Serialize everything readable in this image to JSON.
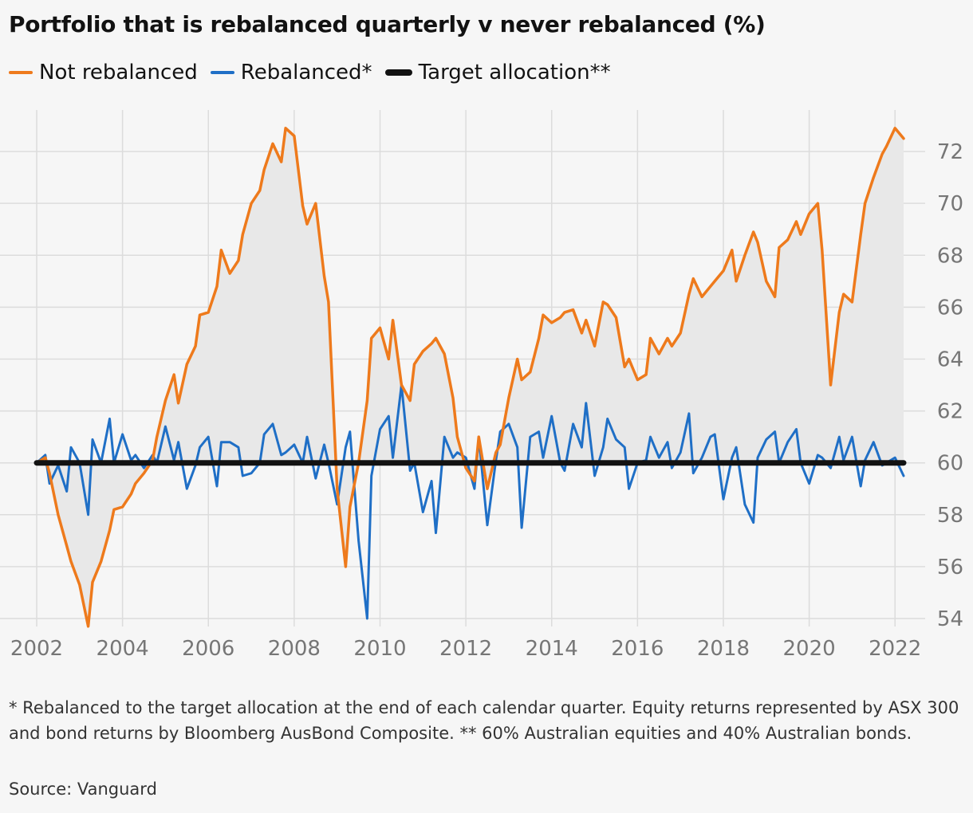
{
  "title": "Portfolio that is rebalanced quarterly v never rebalanced (%)",
  "footnote": "* Rebalanced to the target allocation at the end of each calendar quarter. Equity returns represented by ASX 300 and bond returns by Bloomberg AusBond Composite. ** 60% Australian equities and 40% Australian bonds.",
  "source": "Source: Vanguard",
  "colors": {
    "not_rebalanced": "#ee7a1c",
    "rebalanced": "#1f6fc6",
    "target": "#121212",
    "fill": "#e8e8e8",
    "grid": "#dcdcdc",
    "tick_text": "#767676"
  },
  "chart_data": {
    "type": "line",
    "title": "Portfolio that is rebalanced quarterly v never rebalanced (%)",
    "xlabel": "",
    "ylabel": "",
    "xlim": [
      2002,
      2022.2
    ],
    "ylim": [
      54,
      73.6
    ],
    "x_ticks": [
      2002,
      2004,
      2006,
      2008,
      2010,
      2012,
      2014,
      2016,
      2018,
      2020,
      2022
    ],
    "y_ticks": [
      54,
      56,
      58,
      60,
      62,
      64,
      66,
      68,
      70,
      72
    ],
    "grid": true,
    "legend_position": "top-left",
    "shaded_between": [
      "Not rebalanced",
      "Target allocation**"
    ],
    "series": [
      {
        "name": "Not rebalanced",
        "x": [
          2002.0,
          2002.2,
          2002.3,
          2002.5,
          2002.7,
          2002.8,
          2003.0,
          2003.2,
          2003.3,
          2003.5,
          2003.7,
          2003.8,
          2004.0,
          2004.2,
          2004.3,
          2004.5,
          2004.7,
          2004.8,
          2005.0,
          2005.2,
          2005.3,
          2005.5,
          2005.7,
          2005.8,
          2006.0,
          2006.2,
          2006.3,
          2006.5,
          2006.7,
          2006.8,
          2007.0,
          2007.2,
          2007.3,
          2007.5,
          2007.7,
          2007.8,
          2008.0,
          2008.2,
          2008.3,
          2008.5,
          2008.7,
          2008.8,
          2009.0,
          2009.2,
          2009.3,
          2009.5,
          2009.7,
          2009.8,
          2010.0,
          2010.2,
          2010.3,
          2010.5,
          2010.7,
          2010.8,
          2011.0,
          2011.2,
          2011.3,
          2011.5,
          2011.7,
          2011.8,
          2012.0,
          2012.2,
          2012.3,
          2012.5,
          2012.7,
          2012.8,
          2013.0,
          2013.2,
          2013.3,
          2013.5,
          2013.7,
          2013.8,
          2014.0,
          2014.2,
          2014.3,
          2014.5,
          2014.7,
          2014.8,
          2015.0,
          2015.2,
          2015.3,
          2015.5,
          2015.7,
          2015.8,
          2016.0,
          2016.2,
          2016.3,
          2016.5,
          2016.7,
          2016.8,
          2017.0,
          2017.2,
          2017.3,
          2017.5,
          2017.7,
          2017.8,
          2018.0,
          2018.2,
          2018.3,
          2018.5,
          2018.7,
          2018.8,
          2019.0,
          2019.2,
          2019.3,
          2019.5,
          2019.7,
          2019.8,
          2020.0,
          2020.2,
          2020.3,
          2020.5,
          2020.7,
          2020.8,
          2021.0,
          2021.2,
          2021.3,
          2021.5,
          2021.7,
          2021.8,
          2022.0,
          2022.2
        ],
        "values": [
          60.0,
          60.2,
          59.6,
          58.0,
          56.8,
          56.2,
          55.3,
          53.7,
          55.4,
          56.2,
          57.4,
          58.2,
          58.3,
          58.8,
          59.2,
          59.6,
          60.1,
          61.0,
          62.4,
          63.4,
          62.3,
          63.8,
          64.5,
          65.7,
          65.8,
          66.8,
          68.2,
          67.3,
          67.8,
          68.8,
          70.0,
          70.5,
          71.3,
          72.3,
          71.6,
          72.9,
          72.6,
          69.9,
          69.2,
          70.0,
          67.2,
          66.2,
          59.0,
          56.0,
          58.3,
          60.0,
          62.4,
          64.8,
          65.2,
          64.0,
          65.5,
          63.0,
          62.4,
          63.8,
          64.3,
          64.6,
          64.8,
          64.2,
          62.5,
          61.0,
          59.8,
          59.3,
          61.0,
          59.0,
          60.4,
          60.7,
          62.5,
          64.0,
          63.2,
          63.5,
          64.8,
          65.7,
          65.4,
          65.6,
          65.8,
          65.9,
          65.0,
          65.5,
          64.5,
          66.2,
          66.1,
          65.6,
          63.7,
          64.0,
          63.2,
          63.4,
          64.8,
          64.2,
          64.8,
          64.5,
          65.0,
          66.5,
          67.1,
          66.4,
          66.8,
          67.0,
          67.4,
          68.2,
          67.0,
          68.0,
          68.9,
          68.5,
          67.0,
          66.4,
          68.3,
          68.6,
          69.3,
          68.8,
          69.6,
          70.0,
          68.2,
          63.0,
          65.8,
          66.5,
          66.2,
          68.8,
          70.0,
          71.0,
          71.9,
          72.2,
          72.9,
          72.5
        ]
      },
      {
        "name": "Rebalanced*",
        "x": [
          2002.0,
          2002.2,
          2002.3,
          2002.5,
          2002.7,
          2002.8,
          2003.0,
          2003.2,
          2003.3,
          2003.5,
          2003.7,
          2003.8,
          2004.0,
          2004.2,
          2004.3,
          2004.5,
          2004.7,
          2004.8,
          2005.0,
          2005.2,
          2005.3,
          2005.5,
          2005.7,
          2005.8,
          2006.0,
          2006.2,
          2006.3,
          2006.5,
          2006.7,
          2006.8,
          2007.0,
          2007.2,
          2007.3,
          2007.5,
          2007.7,
          2007.8,
          2008.0,
          2008.2,
          2008.3,
          2008.5,
          2008.7,
          2008.8,
          2009.0,
          2009.2,
          2009.3,
          2009.5,
          2009.7,
          2009.8,
          2010.0,
          2010.2,
          2010.3,
          2010.5,
          2010.7,
          2010.8,
          2011.0,
          2011.2,
          2011.3,
          2011.5,
          2011.7,
          2011.8,
          2012.0,
          2012.2,
          2012.3,
          2012.5,
          2012.7,
          2012.8,
          2013.0,
          2013.2,
          2013.3,
          2013.5,
          2013.7,
          2013.8,
          2014.0,
          2014.2,
          2014.3,
          2014.5,
          2014.7,
          2014.8,
          2015.0,
          2015.2,
          2015.3,
          2015.5,
          2015.7,
          2015.8,
          2016.0,
          2016.2,
          2016.3,
          2016.5,
          2016.7,
          2016.8,
          2017.0,
          2017.2,
          2017.3,
          2017.5,
          2017.7,
          2017.8,
          2018.0,
          2018.2,
          2018.3,
          2018.5,
          2018.7,
          2018.8,
          2019.0,
          2019.2,
          2019.3,
          2019.5,
          2019.7,
          2019.8,
          2020.0,
          2020.2,
          2020.3,
          2020.5,
          2020.7,
          2020.8,
          2021.0,
          2021.2,
          2021.3,
          2021.5,
          2021.7,
          2021.8,
          2022.0,
          2022.2
        ],
        "values": [
          60.0,
          60.3,
          59.2,
          59.9,
          58.9,
          60.6,
          60.0,
          58.0,
          60.9,
          60.0,
          61.7,
          60.0,
          61.1,
          60.1,
          60.3,
          59.8,
          60.3,
          60.0,
          61.4,
          60.1,
          60.8,
          59.0,
          59.9,
          60.6,
          61.0,
          59.1,
          60.8,
          60.8,
          60.6,
          59.5,
          59.6,
          60.0,
          61.1,
          61.5,
          60.3,
          60.4,
          60.7,
          60.0,
          61.0,
          59.4,
          60.7,
          60.0,
          58.4,
          60.6,
          61.2,
          57.0,
          54.0,
          59.5,
          61.3,
          61.8,
          60.2,
          63.0,
          59.7,
          60.0,
          58.1,
          59.3,
          57.3,
          61.0,
          60.2,
          60.4,
          60.2,
          59.0,
          61.0,
          57.6,
          60.1,
          61.2,
          61.5,
          60.6,
          57.5,
          61.0,
          61.2,
          60.2,
          61.8,
          60.0,
          59.7,
          61.5,
          60.6,
          62.3,
          59.5,
          60.6,
          61.7,
          60.9,
          60.6,
          59.0,
          60.0,
          60.1,
          61.0,
          60.2,
          60.8,
          59.8,
          60.4,
          61.9,
          59.6,
          60.2,
          61.0,
          61.1,
          58.6,
          60.2,
          60.6,
          58.4,
          57.7,
          60.2,
          60.9,
          61.2,
          60.0,
          60.8,
          61.3,
          60.0,
          59.2,
          60.3,
          60.2,
          59.8,
          61.0,
          60.1,
          61.0,
          59.1,
          60.1,
          60.8,
          59.9,
          60.0,
          60.2,
          59.5
        ]
      },
      {
        "name": "Target allocation**",
        "x": [
          2002.0,
          2022.2
        ],
        "values": [
          60,
          60
        ]
      }
    ]
  }
}
